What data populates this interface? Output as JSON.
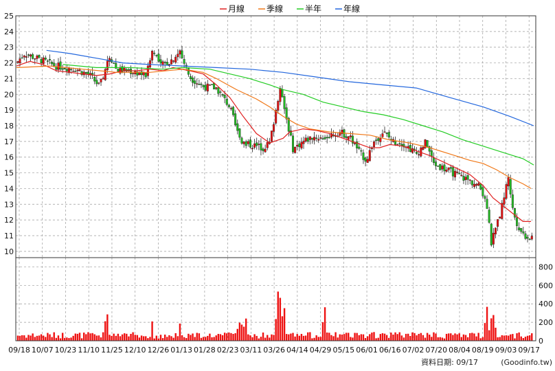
{
  "legend": [
    {
      "label": "月線",
      "color": "#e02020"
    },
    {
      "label": "季線",
      "color": "#f07818"
    },
    {
      "label": "半年",
      "color": "#22cc22"
    },
    {
      "label": "年線",
      "color": "#2266dd"
    }
  ],
  "footer": {
    "date_label": "資料日期: 09/17",
    "source": "(Goodinfo.tw)"
  },
  "colors": {
    "up": "#e81010",
    "down": "#22bb22",
    "volume": "#ee1111",
    "grid": "#9a9a9a"
  },
  "chart_data": [
    {
      "type": "candlestick",
      "x_ticks": [
        "09/18",
        "10/07",
        "10/23",
        "11/10",
        "11/25",
        "12/10",
        "12/26",
        "01/13",
        "01/28",
        "02/23",
        "03/11",
        "03/26",
        "04/14",
        "04/29",
        "05/15",
        "06/01",
        "06/16",
        "07/02",
        "07/20",
        "08/04",
        "08/19",
        "09/03",
        "09/17"
      ],
      "y_ticks": [
        10,
        11,
        12,
        13,
        14,
        15,
        16,
        17,
        18,
        19,
        20,
        21,
        22,
        23,
        24,
        25
      ],
      "ylim": [
        9.6,
        25
      ],
      "grid": true,
      "legend_position": "top-center",
      "series": [
        {
          "name": "月線",
          "points": [
            [
              0,
              21.8
            ],
            [
              20,
              22.1
            ],
            [
              40,
              21.9
            ],
            [
              60,
              21.5
            ],
            [
              80,
              21.4
            ],
            [
              100,
              21.3
            ],
            [
              120,
              21.2
            ],
            [
              140,
              21.3
            ],
            [
              160,
              21.5
            ],
            [
              180,
              21.5
            ],
            [
              200,
              21.6
            ],
            [
              220,
              21.5
            ],
            [
              235,
              21.7
            ],
            [
              260,
              21.5
            ],
            [
              280,
              21.3
            ],
            [
              300,
              20.6
            ],
            [
              320,
              19.8
            ],
            [
              340,
              18.6
            ],
            [
              360,
              17.5
            ],
            [
              380,
              16.9
            ],
            [
              400,
              17.2
            ],
            [
              410,
              17.6
            ],
            [
              430,
              17.8
            ],
            [
              450,
              17.7
            ],
            [
              470,
              17.5
            ],
            [
              490,
              17.2
            ],
            [
              510,
              16.9
            ],
            [
              530,
              16.6
            ],
            [
              545,
              16.6
            ],
            [
              560,
              16.8
            ],
            [
              580,
              16.7
            ],
            [
              600,
              16.4
            ],
            [
              620,
              16.1
            ],
            [
              640,
              15.7
            ],
            [
              660,
              15.3
            ],
            [
              680,
              14.9
            ],
            [
              700,
              14.2
            ],
            [
              715,
              13.4
            ],
            [
              730,
              12.9
            ],
            [
              745,
              12.4
            ],
            [
              760,
              11.9
            ],
            [
              772,
              11.9
            ]
          ]
        },
        {
          "name": "季線",
          "points": [
            [
              0,
              21.7
            ],
            [
              50,
              21.8
            ],
            [
              100,
              21.6
            ],
            [
              150,
              21.4
            ],
            [
              200,
              21.4
            ],
            [
              250,
              21.6
            ],
            [
              280,
              21.4
            ],
            [
              300,
              21.0
            ],
            [
              330,
              20.3
            ],
            [
              360,
              19.7
            ],
            [
              380,
              19.2
            ],
            [
              400,
              18.6
            ],
            [
              420,
              18.1
            ],
            [
              440,
              17.8
            ],
            [
              470,
              17.6
            ],
            [
              500,
              17.5
            ],
            [
              530,
              17.4
            ],
            [
              560,
              17.1
            ],
            [
              590,
              16.9
            ],
            [
              620,
              16.6
            ],
            [
              650,
              16.2
            ],
            [
              680,
              15.8
            ],
            [
              700,
              15.6
            ],
            [
              720,
              15.2
            ],
            [
              740,
              14.7
            ],
            [
              760,
              14.3
            ],
            [
              772,
              14.0
            ]
          ]
        },
        {
          "name": "半年",
          "points": [
            [
              70,
              21.9
            ],
            [
              120,
              21.7
            ],
            [
              170,
              21.7
            ],
            [
              220,
              21.6
            ],
            [
              250,
              21.7
            ],
            [
              290,
              21.6
            ],
            [
              320,
              21.3
            ],
            [
              350,
              21.0
            ],
            [
              380,
              20.6
            ],
            [
              400,
              20.3
            ],
            [
              430,
              20.0
            ],
            [
              460,
              19.5
            ],
            [
              490,
              19.2
            ],
            [
              520,
              18.9
            ],
            [
              550,
              18.7
            ],
            [
              580,
              18.4
            ],
            [
              610,
              18.0
            ],
            [
              640,
              17.6
            ],
            [
              670,
              17.1
            ],
            [
              700,
              16.7
            ],
            [
              730,
              16.3
            ],
            [
              760,
              15.9
            ],
            [
              776,
              15.5
            ]
          ]
        },
        {
          "name": "年線",
          "points": [
            [
              45,
              22.8
            ],
            [
              80,
              22.6
            ],
            [
              120,
              22.3
            ],
            [
              160,
              22.0
            ],
            [
              200,
              21.9
            ],
            [
              250,
              21.8
            ],
            [
              300,
              21.7
            ],
            [
              350,
              21.6
            ],
            [
              400,
              21.4
            ],
            [
              450,
              21.1
            ],
            [
              500,
              20.8
            ],
            [
              550,
              20.6
            ],
            [
              600,
              20.4
            ],
            [
              650,
              19.8
            ],
            [
              700,
              19.2
            ],
            [
              740,
              18.6
            ],
            [
              776,
              18.0
            ]
          ]
        }
      ]
    },
    {
      "type": "bar",
      "y_ticks": [
        0,
        200,
        400,
        600,
        800
      ],
      "ylim": [
        0,
        900
      ]
    }
  ]
}
